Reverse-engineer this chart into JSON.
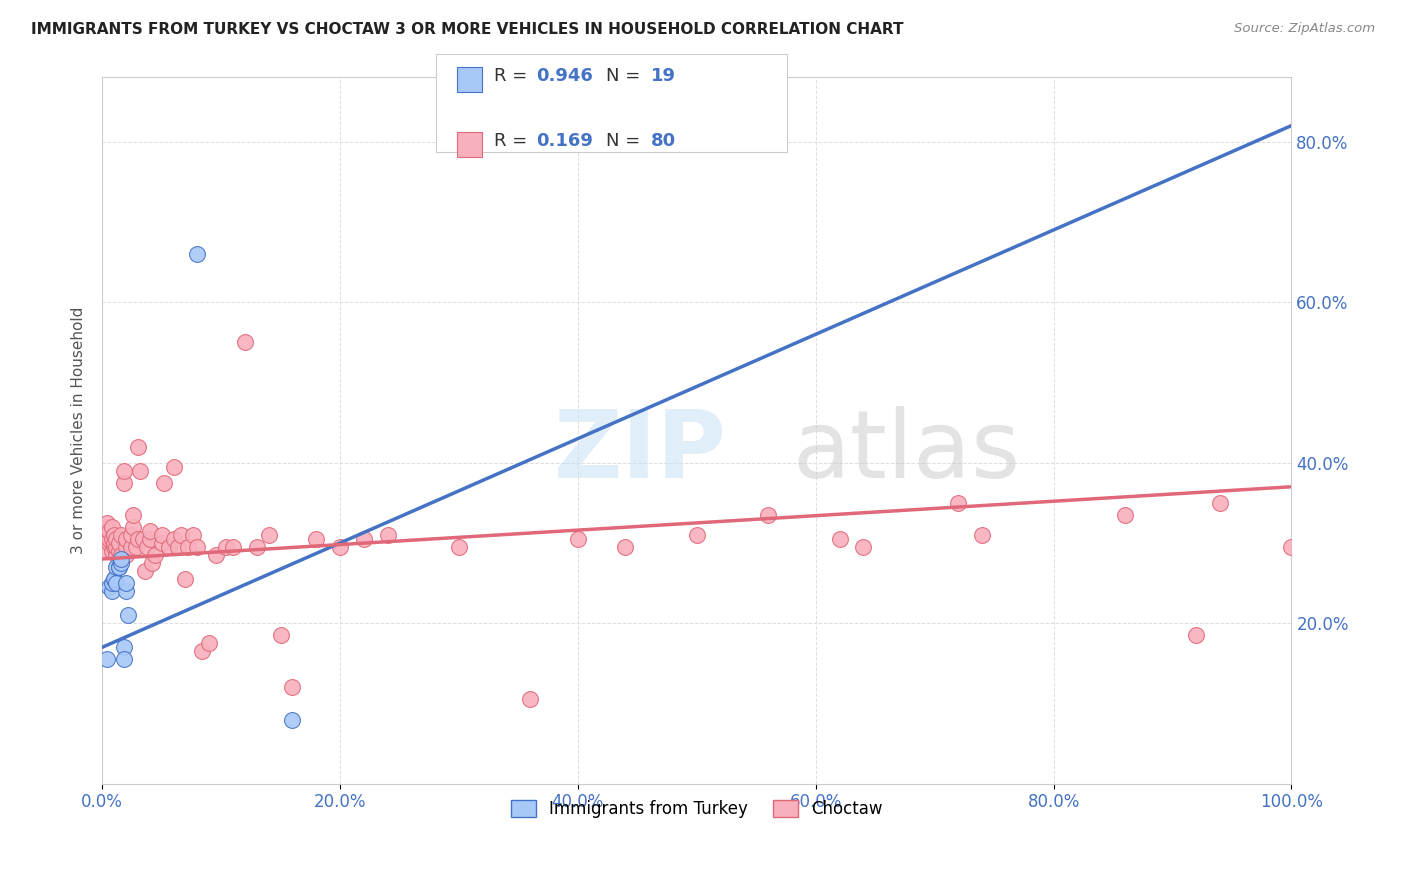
{
  "title": "IMMIGRANTS FROM TURKEY VS CHOCTAW 3 OR MORE VEHICLES IN HOUSEHOLD CORRELATION CHART",
  "source": "Source: ZipAtlas.com",
  "ylabel": "3 or more Vehicles in Household",
  "ytick_vals": [
    0.0,
    0.2,
    0.4,
    0.6,
    0.8
  ],
  "ytick_labels": [
    "",
    "20.0%",
    "40.0%",
    "60.0%",
    "80.0%"
  ],
  "xtick_vals": [
    0.0,
    0.2,
    0.4,
    0.6,
    0.8,
    1.0
  ],
  "xtick_labels": [
    "0.0%",
    "20.0%",
    "40.0%",
    "60.0%",
    "80.0%",
    "100.0%"
  ],
  "xlim": [
    0.0,
    1.0
  ],
  "ylim": [
    0.0,
    0.88
  ],
  "legend_series1": "Immigrants from Turkey",
  "legend_series2": "Choctaw",
  "color_blue": "#A8C8F8",
  "color_pink": "#F8B0BC",
  "line_blue": "#4472C4",
  "line_pink": "#E06878",
  "background_color": "#FFFFFF",
  "r1": "0.946",
  "n1": "19",
  "r2": "0.169",
  "n2": "80",
  "turkey_x": [
    0.004,
    0.006,
    0.008,
    0.008,
    0.01,
    0.01,
    0.012,
    0.012,
    0.014,
    0.014,
    0.016,
    0.016,
    0.018,
    0.018,
    0.02,
    0.02,
    0.022,
    0.08,
    0.16
  ],
  "turkey_y": [
    0.155,
    0.245,
    0.24,
    0.25,
    0.255,
    0.255,
    0.25,
    0.27,
    0.27,
    0.27,
    0.275,
    0.28,
    0.17,
    0.155,
    0.24,
    0.25,
    0.21,
    0.66,
    0.08
  ],
  "choctaw_x": [
    0.002,
    0.002,
    0.004,
    0.004,
    0.006,
    0.006,
    0.006,
    0.008,
    0.008,
    0.008,
    0.01,
    0.01,
    0.01,
    0.012,
    0.012,
    0.012,
    0.014,
    0.014,
    0.016,
    0.016,
    0.018,
    0.018,
    0.02,
    0.02,
    0.02,
    0.024,
    0.024,
    0.026,
    0.026,
    0.028,
    0.03,
    0.03,
    0.032,
    0.034,
    0.036,
    0.038,
    0.04,
    0.04,
    0.042,
    0.044,
    0.05,
    0.05,
    0.052,
    0.056,
    0.06,
    0.06,
    0.064,
    0.066,
    0.07,
    0.072,
    0.076,
    0.08,
    0.084,
    0.09,
    0.096,
    0.104,
    0.11,
    0.12,
    0.13,
    0.14,
    0.15,
    0.16,
    0.18,
    0.2,
    0.22,
    0.24,
    0.3,
    0.36,
    0.4,
    0.44,
    0.5,
    0.56,
    0.64,
    0.74,
    0.86,
    1.0,
    0.62,
    0.72,
    0.92,
    0.94
  ],
  "choctaw_y": [
    0.29,
    0.31,
    0.32,
    0.325,
    0.3,
    0.305,
    0.315,
    0.29,
    0.305,
    0.32,
    0.295,
    0.3,
    0.31,
    0.285,
    0.295,
    0.305,
    0.29,
    0.3,
    0.285,
    0.31,
    0.375,
    0.39,
    0.285,
    0.295,
    0.305,
    0.295,
    0.31,
    0.32,
    0.335,
    0.295,
    0.305,
    0.42,
    0.39,
    0.305,
    0.265,
    0.295,
    0.305,
    0.315,
    0.275,
    0.285,
    0.3,
    0.31,
    0.375,
    0.295,
    0.305,
    0.395,
    0.295,
    0.31,
    0.255,
    0.295,
    0.31,
    0.295,
    0.165,
    0.175,
    0.285,
    0.295,
    0.295,
    0.55,
    0.295,
    0.31,
    0.185,
    0.12,
    0.305,
    0.295,
    0.305,
    0.31,
    0.295,
    0.105,
    0.305,
    0.295,
    0.31,
    0.335,
    0.295,
    0.31,
    0.335,
    0.295,
    0.305,
    0.35,
    0.185,
    0.35
  ]
}
